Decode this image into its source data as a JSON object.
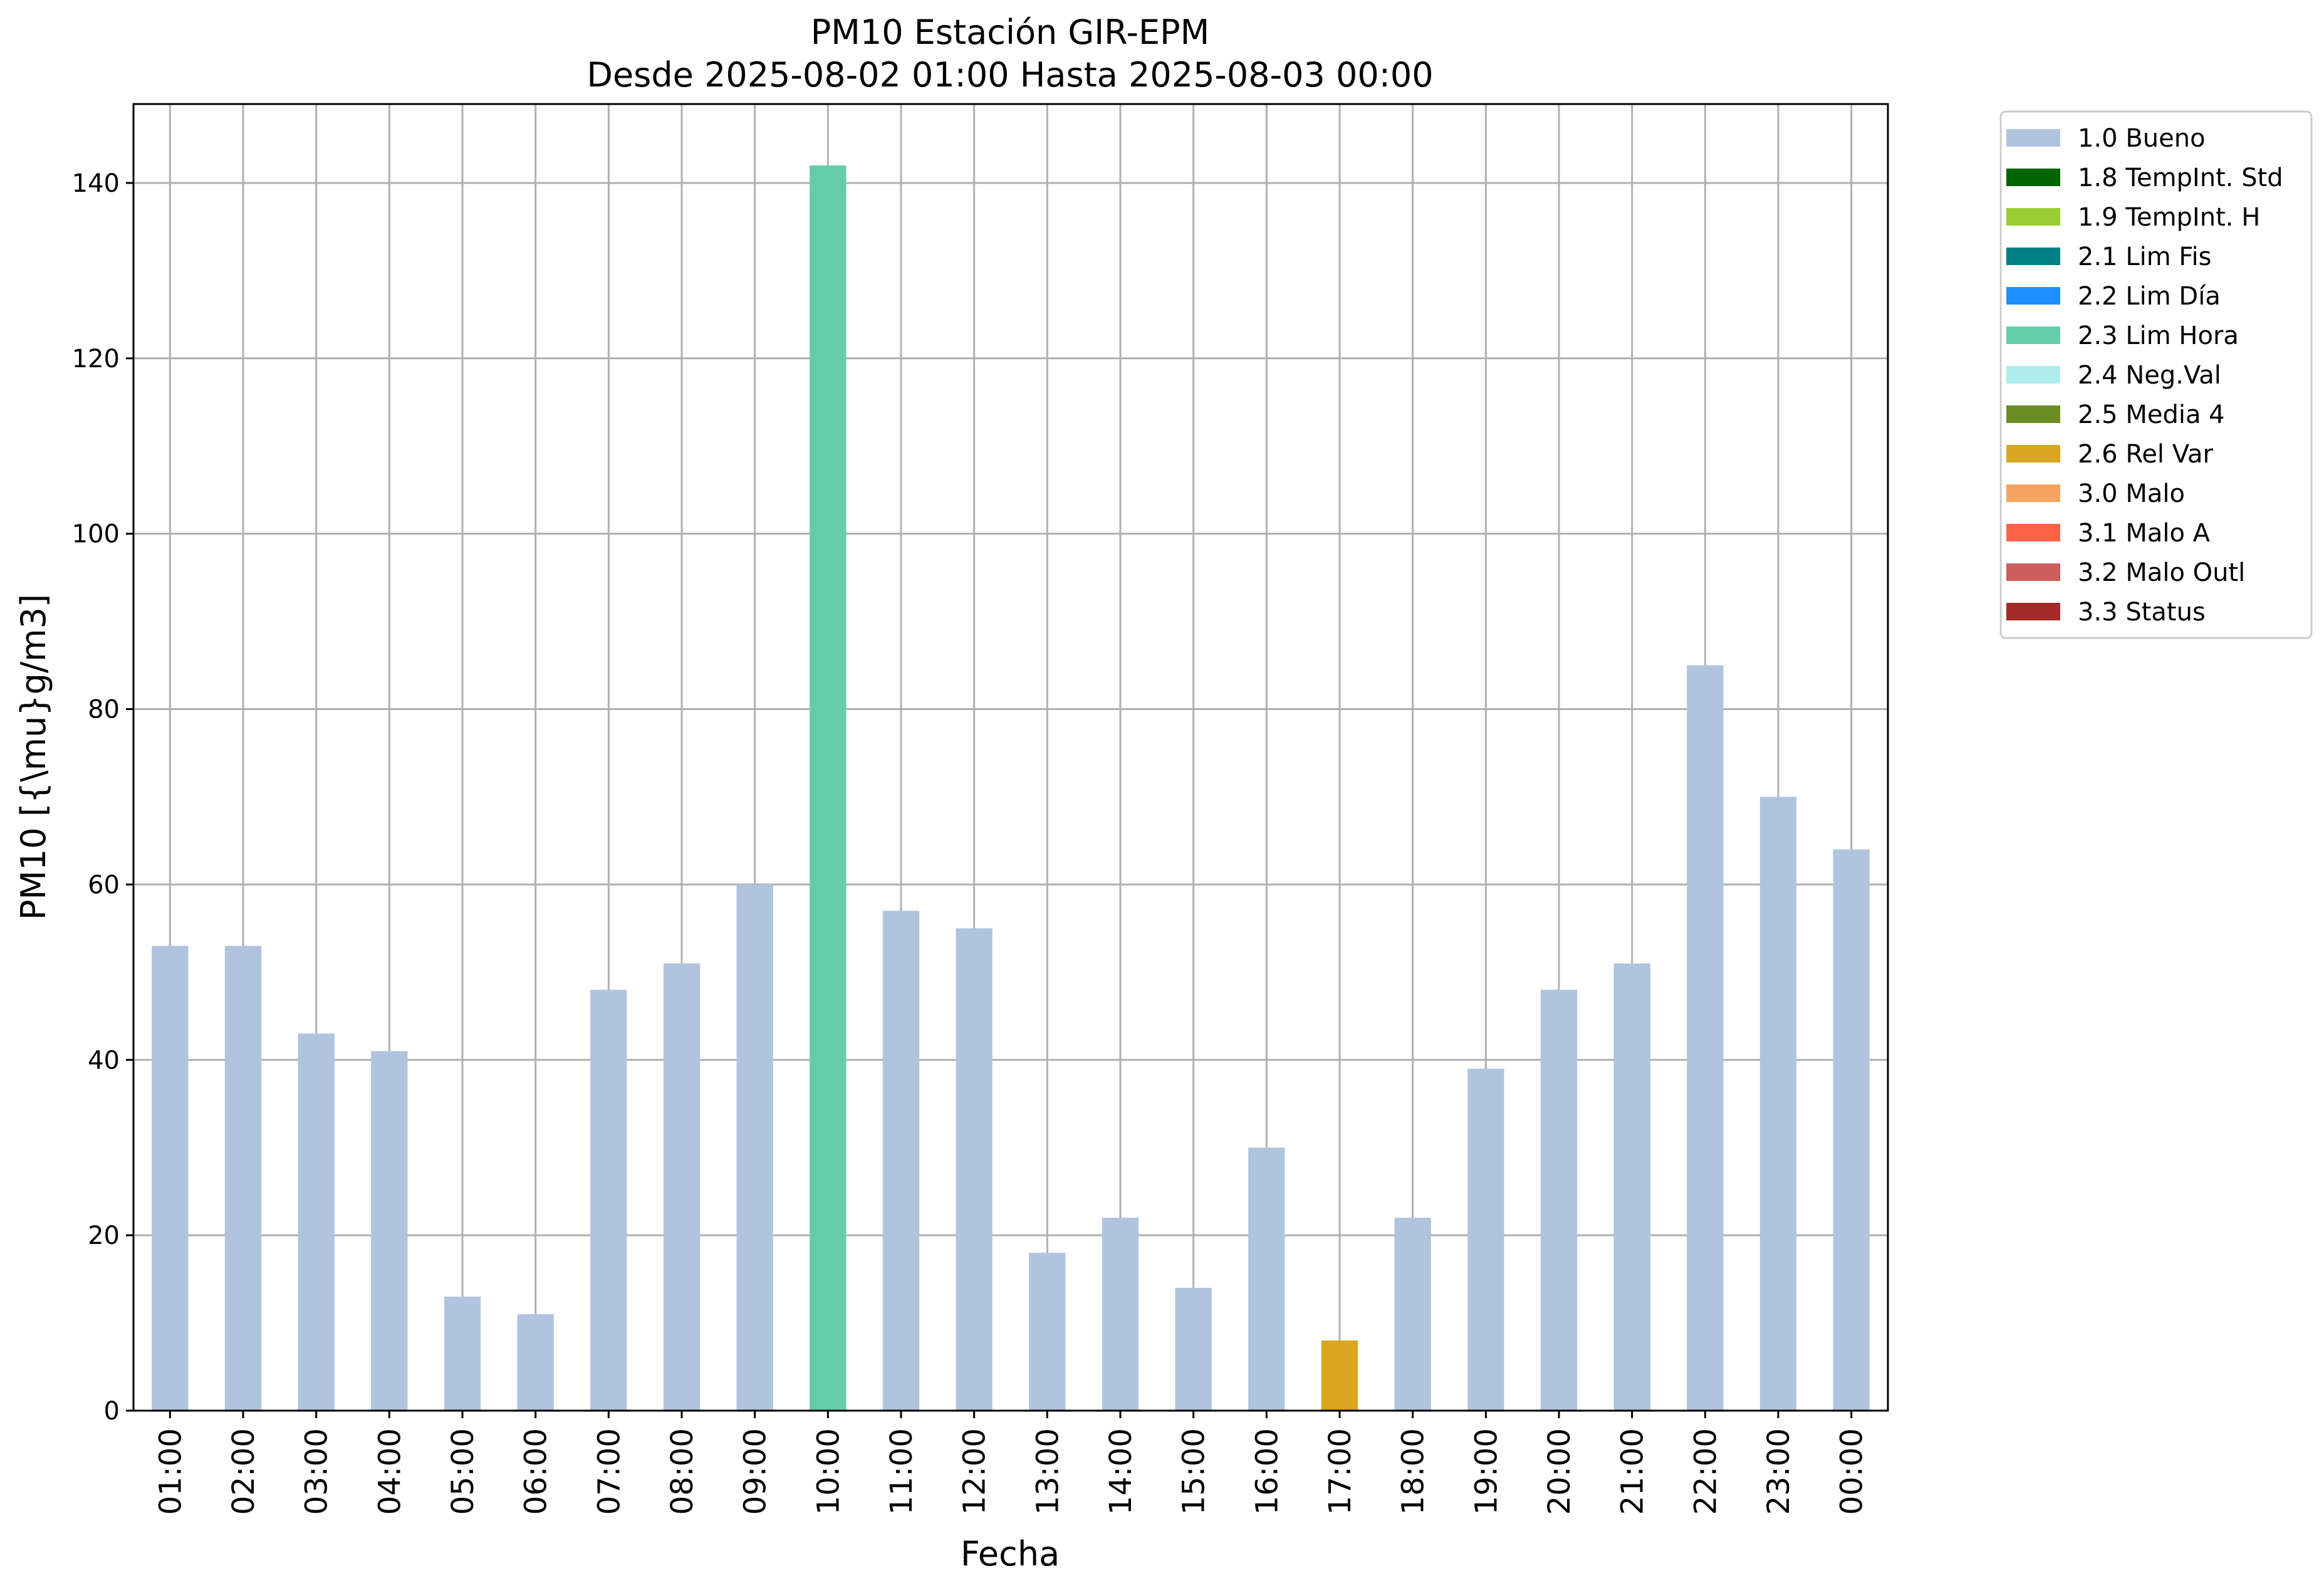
{
  "chart_data": {
    "type": "bar",
    "title": "PM10 Estación GIR-EPM",
    "subtitle": "Desde 2025-08-02 01:00 Hasta 2025-08-03 00:00",
    "xlabel": "Fecha",
    "ylabel": "PM10 [{\\mu}g/m3]",
    "ylim": [
      0,
      149
    ],
    "yticks": [
      0,
      20,
      40,
      60,
      80,
      100,
      120,
      140
    ],
    "grid": true,
    "legend_position": "outside-top-right",
    "categories": [
      "01:00",
      "02:00",
      "03:00",
      "04:00",
      "05:00",
      "06:00",
      "07:00",
      "08:00",
      "09:00",
      "10:00",
      "11:00",
      "12:00",
      "13:00",
      "14:00",
      "15:00",
      "16:00",
      "17:00",
      "18:00",
      "19:00",
      "20:00",
      "21:00",
      "22:00",
      "23:00",
      "00:00"
    ],
    "values": [
      53,
      53,
      43,
      41,
      13,
      11,
      48,
      51,
      60,
      142,
      57,
      55,
      18,
      22,
      14,
      30,
      8,
      22,
      39,
      48,
      51,
      85,
      70,
      64
    ],
    "flags": [
      "1.0 Bueno",
      "1.0 Bueno",
      "1.0 Bueno",
      "1.0 Bueno",
      "1.0 Bueno",
      "1.0 Bueno",
      "1.0 Bueno",
      "1.0 Bueno",
      "1.0 Bueno",
      "2.3 Lim Hora",
      "1.0 Bueno",
      "1.0 Bueno",
      "1.0 Bueno",
      "1.0 Bueno",
      "1.0 Bueno",
      "1.0 Bueno",
      "2.6 Rel Var",
      "1.0 Bueno",
      "1.0 Bueno",
      "1.0 Bueno",
      "1.0 Bueno",
      "1.0 Bueno",
      "1.0 Bueno",
      "1.0 Bueno"
    ],
    "legend": [
      {
        "name": "1.0 Bueno",
        "color": "#b0c4de"
      },
      {
        "name": "1.8 TempInt. Std",
        "color": "#006400"
      },
      {
        "name": "1.9 TempInt. H",
        "color": "#9acd32"
      },
      {
        "name": "2.1 Lim Fis",
        "color": "#008080"
      },
      {
        "name": "2.2 Lim Día",
        "color": "#1e90ff"
      },
      {
        "name": "2.3 Lim Hora",
        "color": "#66cdaa"
      },
      {
        "name": "2.4 Neg.Val",
        "color": "#afeeee"
      },
      {
        "name": "2.5 Media 4",
        "color": "#6b8e23"
      },
      {
        "name": "2.6 Rel Var",
        "color": "#daa520"
      },
      {
        "name": "3.0 Malo",
        "color": "#f4a460"
      },
      {
        "name": "3.1 Malo A",
        "color": "#ff6347"
      },
      {
        "name": "3.2 Malo Outl",
        "color": "#cd5c5c"
      },
      {
        "name": "3.3 Status",
        "color": "#a52a2a"
      }
    ]
  }
}
